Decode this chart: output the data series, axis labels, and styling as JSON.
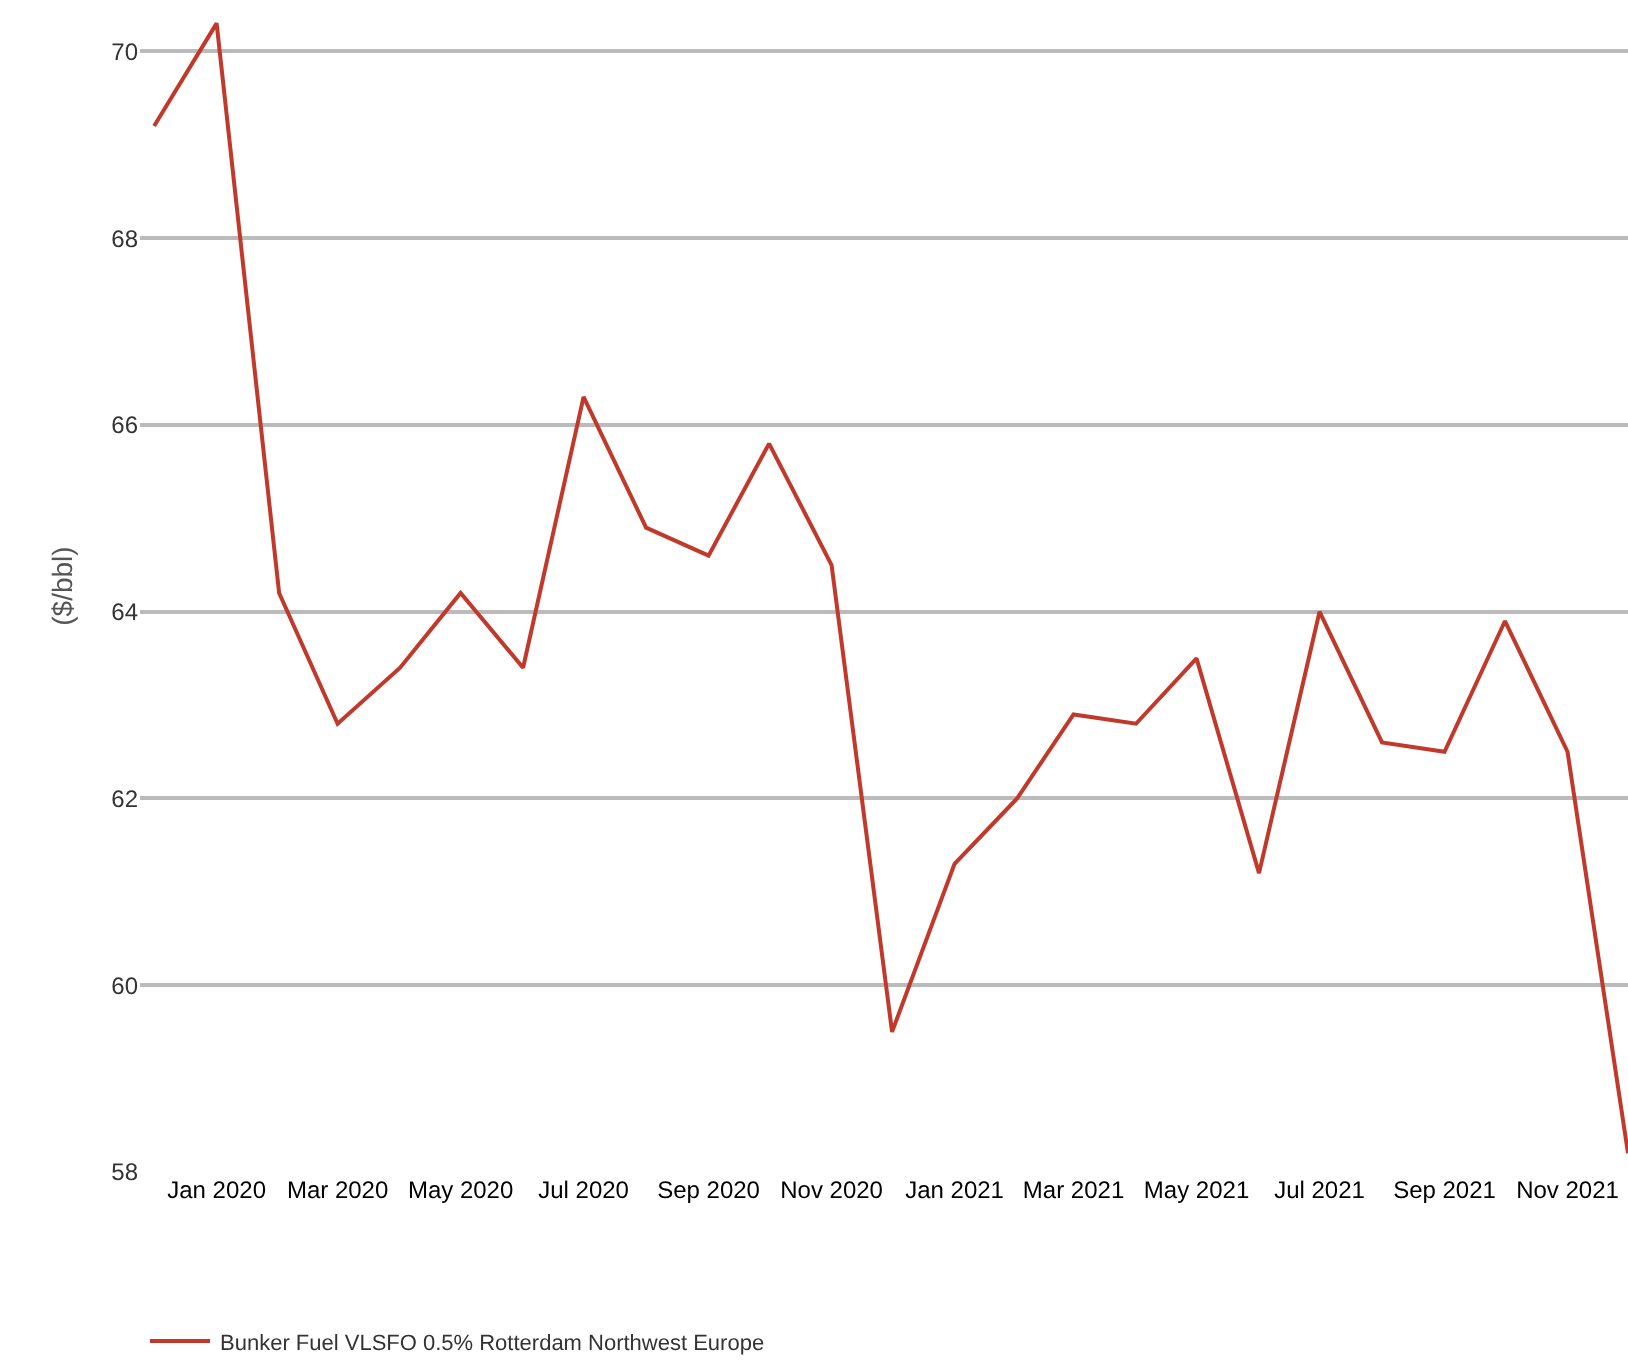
{
  "chart_data": {
    "type": "line",
    "ylabel": "($/bbl)",
    "x": [
      "2019-12",
      "2020-01",
      "2020-02",
      "2020-03",
      "2020-04",
      "2020-05",
      "2020-06",
      "2020-07",
      "2020-08",
      "2020-09",
      "2020-10",
      "2020-11",
      "2020-12",
      "2021-01",
      "2021-02",
      "2021-03",
      "2021-04",
      "2021-05",
      "2021-06",
      "2021-07",
      "2021-08",
      "2021-09",
      "2021-10",
      "2021-11",
      "2021-12"
    ],
    "series": [
      {
        "name": "Bunker Fuel VLSFO 0.5% Rotterdam Northwest Europe",
        "color": "#c0392b",
        "values": [
          69.2,
          70.3,
          64.2,
          62.8,
          63.4,
          64.2,
          63.4,
          66.3,
          64.9,
          64.6,
          65.8,
          64.5,
          59.5,
          61.3,
          62.0,
          62.9,
          62.8,
          63.5,
          61.2,
          64.0,
          62.6,
          62.5,
          63.9,
          62.5,
          58.2
        ]
      }
    ],
    "xlim": [
      "2019-11-24",
      "2021-12-01"
    ],
    "xticks": [
      {
        "value": "2020-01",
        "label": "Jan 2020"
      },
      {
        "value": "2020-03",
        "label": "Mar 2020"
      },
      {
        "value": "2020-05",
        "label": "May 2020"
      },
      {
        "value": "2020-07",
        "label": "Jul 2020"
      },
      {
        "value": "2020-09",
        "label": "Sep 2020"
      },
      {
        "value": "2020-11",
        "label": "Nov 2020"
      },
      {
        "value": "2021-01",
        "label": "Jan 2021"
      },
      {
        "value": "2021-03",
        "label": "Mar 2021"
      },
      {
        "value": "2021-05",
        "label": "May 2021"
      },
      {
        "value": "2021-07",
        "label": "Jul 2021"
      },
      {
        "value": "2021-09",
        "label": "Sep 2021"
      },
      {
        "value": "2021-11",
        "label": "Nov 2021"
      }
    ],
    "ylim": [
      58,
      70.55
    ],
    "yticks": [
      58,
      60,
      62,
      64,
      66,
      68,
      70
    ],
    "grid": "y",
    "legend": "bottom left",
    "marker": "none",
    "line_style": "solid"
  }
}
